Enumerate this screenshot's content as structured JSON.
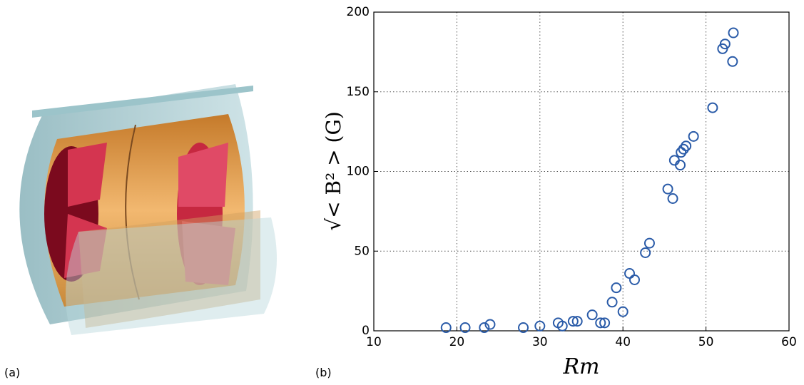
{
  "panels": {
    "a": "(a)",
    "b": "(b)"
  },
  "chart_data": {
    "type": "scatter",
    "xlabel": "Rm",
    "ylabel": "√< B² > (G)",
    "xlim": [
      10,
      60
    ],
    "ylim": [
      0,
      200
    ],
    "xticks": [
      10,
      20,
      30,
      40,
      50,
      60
    ],
    "yticks": [
      0,
      50,
      100,
      150,
      200
    ],
    "grid": true,
    "color": "#2a5ba8",
    "x": [
      18.7,
      21,
      23.3,
      24,
      28,
      30,
      32.2,
      32.7,
      34,
      34.5,
      36.3,
      37.3,
      37.8,
      38.7,
      39.2,
      40,
      40.8,
      41.4,
      42.7,
      43.2,
      45.4,
      46,
      46.2,
      46.9,
      47,
      47.3,
      47.6,
      48.5,
      50.8,
      52,
      52.3,
      53.2,
      53.3
    ],
    "y": [
      2,
      2,
      2,
      4,
      2,
      3,
      5,
      3,
      6,
      6,
      10,
      5,
      5,
      18,
      27,
      12,
      36,
      32,
      49,
      55,
      89,
      83,
      107,
      104,
      112,
      114,
      116,
      122,
      140,
      177,
      180,
      169,
      187
    ]
  }
}
